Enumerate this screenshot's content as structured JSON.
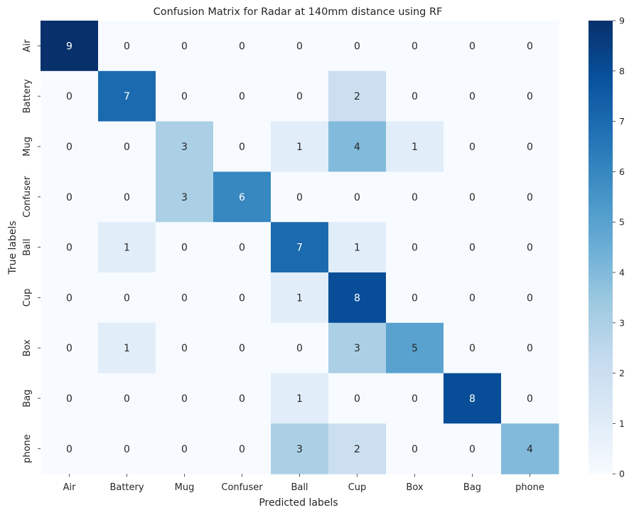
{
  "chart_data": {
    "type": "heatmap",
    "title": "Confusion Matrix for Radar at 140mm distance using RF",
    "xlabel": "Predicted labels",
    "ylabel": "True labels",
    "x_categories": [
      "Air",
      "Battery",
      "Mug",
      "Confuser",
      "Ball",
      "Cup",
      "Box",
      "Bag",
      "phone"
    ],
    "y_categories": [
      "Air",
      "Battery",
      "Mug",
      "Confuser",
      "Ball",
      "Cup",
      "Box",
      "Bag",
      "phone"
    ],
    "values": [
      [
        9,
        0,
        0,
        0,
        0,
        0,
        0,
        0,
        0
      ],
      [
        0,
        7,
        0,
        0,
        0,
        2,
        0,
        0,
        0
      ],
      [
        0,
        0,
        3,
        0,
        1,
        4,
        1,
        0,
        0
      ],
      [
        0,
        0,
        3,
        6,
        0,
        0,
        0,
        0,
        0
      ],
      [
        0,
        1,
        0,
        0,
        7,
        1,
        0,
        0,
        0
      ],
      [
        0,
        0,
        0,
        0,
        1,
        8,
        0,
        0,
        0
      ],
      [
        0,
        1,
        0,
        0,
        0,
        3,
        5,
        0,
        0
      ],
      [
        0,
        0,
        0,
        0,
        1,
        0,
        0,
        8,
        0
      ],
      [
        0,
        0,
        0,
        0,
        3,
        2,
        0,
        0,
        4
      ]
    ],
    "colormap": "Blues",
    "vmin": 0,
    "vmax": 9,
    "colorbar_ticks": [
      0,
      1,
      2,
      3,
      4,
      5,
      6,
      7,
      8,
      9
    ],
    "annotated": true,
    "grid": false
  }
}
